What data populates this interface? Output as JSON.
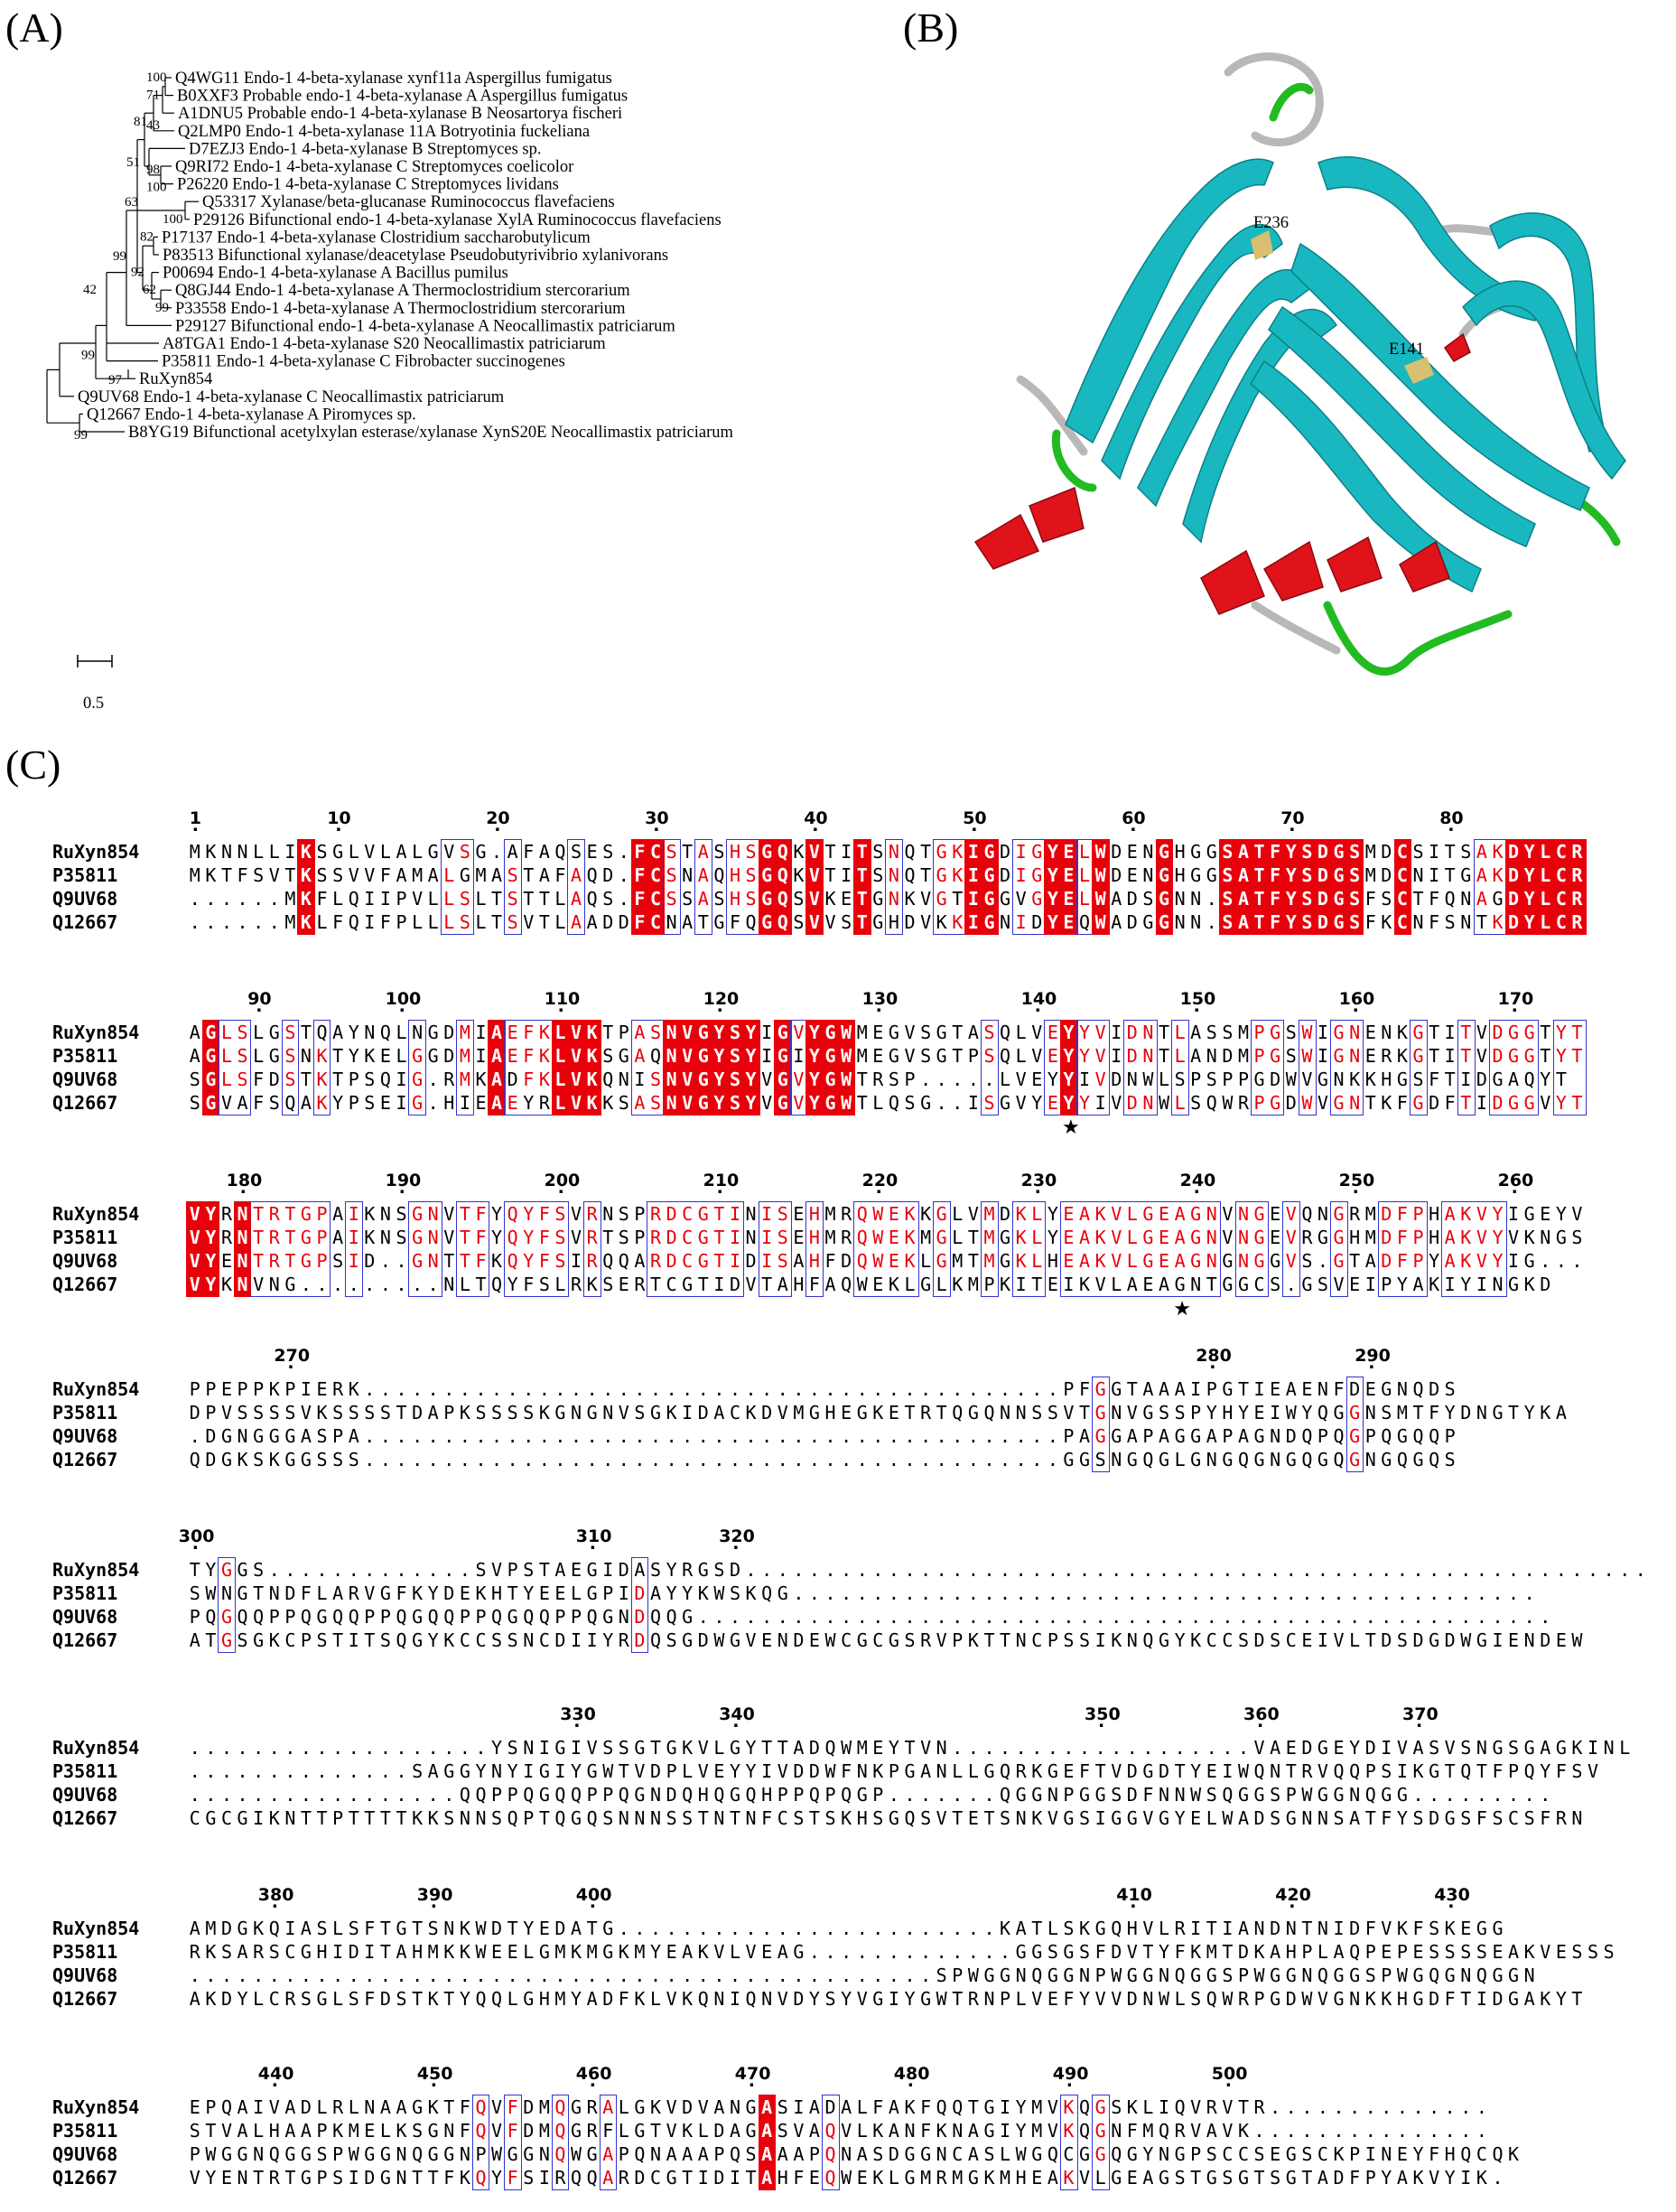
{
  "panels": {
    "a_label": "(A)",
    "b_label": "(B)",
    "c_label": "(C)"
  },
  "tree": {
    "leaves": [
      "Q4WG11 Endo-1 4-beta-xylanase xynf11a Aspergillus fumigatus",
      "B0XXF3 Probable endo-1 4-beta-xylanase A Aspergillus fumigatus",
      "A1DNU5 Probable endo-1 4-beta-xylanase B Neosartorya fischeri",
      "Q2LMP0 Endo-1 4-beta-xylanase 11A Botryotinia fuckeliana",
      "D7EZJ3 Endo-1 4-beta-xylanase B Streptomyces sp.",
      "Q9RI72 Endo-1 4-beta-xylanase C Streptomyces coelicolor",
      "P26220 Endo-1 4-beta-xylanase C Streptomyces lividans",
      "Q53317 Xylanase/beta-glucanase Ruminococcus flavefaciens",
      "P29126 Bifunctional endo-1 4-beta-xylanase XylA Ruminococcus flavefaciens",
      "P17137 Endo-1 4-beta-xylanase Clostridium saccharobutylicum",
      "P83513 Bifunctional xylanase/deacetylase Pseudobutyrivibrio xylanivorans",
      "P00694 Endo-1 4-beta-xylanase A Bacillus pumilus",
      "Q8GJ44 Endo-1 4-beta-xylanase A Thermoclostridium stercorarium",
      "P33558 Endo-1 4-beta-xylanase A Thermoclostridium stercorarium",
      "P29127 Bifunctional endo-1 4-beta-xylanase A Neocallimastix patriciarum",
      "A8TGA1 Endo-1 4-beta-xylanase S20 Neocallimastix patriciarum",
      "P35811 Endo-1 4-beta-xylanase C Fibrobacter succinogenes",
      "RuXyn854",
      "Q9UV68 Endo-1 4-beta-xylanase C Neocallimastix patriciarum",
      "Q12667 Endo-1 4-beta-xylanase A Piromyces sp.",
      "B8YG19 Bifunctional acetylxylan esterase/xylanase XynS20E Neocallimastix patriciarum"
    ],
    "bootstraps": [
      "100",
      "71",
      "81",
      "43",
      "51",
      "98",
      "100",
      "63",
      "100",
      "82",
      "99",
      "92",
      "62",
      "99",
      "42",
      "99",
      "97",
      "99"
    ],
    "scale_label": "0.5"
  },
  "structure": {
    "residue_labels": [
      "E236",
      "E141"
    ],
    "colors": {
      "helix": "#e0131a",
      "sheet": "#19b8c0",
      "turn": "#22bb22",
      "coil": "#b8b8b8",
      "active": "#d8c070"
    }
  },
  "alignment": {
    "names": [
      "RuXyn854",
      "P35811",
      "Q9UV68",
      "Q12667"
    ],
    "colors": {
      "identical_fill": "#e8000b",
      "similar_text": "#e8000b",
      "box": "#3333cc"
    },
    "blocks": [
      {
        "rows": [
          "MKNNLLIKSGLVLALGVSG.AFAQSES.FCSTASHSGQKVTITSNQTGKIGDIGYELWDENGHGGSATFYSDGSMDCSITSAKDYLCR",
          "MKTFSVTKSSVVFAMALGMASTAFAQD.FCSNAQHSGQKVTITSNQTGKIGDIGYELWDENGHGGSATFYSDGSMDCNITGAKDYLCR",
          "......MKFLQIIPVLLSLTSTTLAQS.FCSSASHSGQSVKETGNKVGTIGGVGYELWADSGNN.SATFYSDGSFSCTFQNAGDYLCR",
          "......MKLFQIFPLLLSLTSVTLAADDFCNATGFQGQSVVSTGHDVKKIGNIDYEQWADGGNN.SATFYSDGSFKCNFSNTKDYLCR"
        ],
        "ruler": [
          {
            "num": "1",
            "col": 0
          },
          {
            "num": "10",
            "col": 9
          },
          {
            "num": "20",
            "col": 19
          },
          {
            "num": "30",
            "col": 29
          },
          {
            "num": "40",
            "col": 39
          },
          {
            "num": "50",
            "col": 49
          },
          {
            "num": "60",
            "col": 59
          },
          {
            "num": "70",
            "col": 69
          },
          {
            "num": "80",
            "col": 79
          }
        ],
        "stars": []
      },
      {
        "rows": [
          "AGLSLGSTQAYNQLNGDMIAEFKLVKTPASNVGYSYIGVYGWMEGVSGTASQLVEYYVIDNTLASSMPGSWIGNENKGTITVDGGTYT",
          "AGLSLGSNKTYKELGGDMIAEFKLVKSGAQNVGYSYIGIYGWMEGVSGTPSQLVEYYVIDNTLANDMPGSWIGNERKGTITVDGGTYT",
          "SGLSFDSTKTPSQIG.RMKADFKLVKQNISNVGYSYVGVYGWTRSP.....LVEYYIVDNWLSPSPPGDWVGNKKHGSFTIDGAQYT",
          "SGVAFSQAKYPSEIG.HIEAEYRLVKKSASNVGYSYVGVYGWTLQSG..ISGVYEYYIVDNWLSQWRPGDWVGNTKFGDFTIDGGVYT"
        ],
        "ruler": [
          {
            "num": "90",
            "col": 4
          },
          {
            "num": "100",
            "col": 13
          },
          {
            "num": "110",
            "col": 23
          },
          {
            "num": "120",
            "col": 33
          },
          {
            "num": "130",
            "col": 43
          },
          {
            "num": "140",
            "col": 53
          },
          {
            "num": "150",
            "col": 63
          },
          {
            "num": "160",
            "col": 73
          },
          {
            "num": "170",
            "col": 83
          }
        ],
        "stars": [
          {
            "col": 55
          }
        ]
      },
      {
        "rows": [
          "VYRNTRTGPAIKNSGNVTFYQYFSVRNSPRDCGTINISEHMRQWEKKGLVMDKLYEAKVLGEAGNVNGEVQNGRMDFPHAKVYIGEYV",
          "VYRNTRTGPAIKNSGNVTFYQYFSVRTSPRDCGTINISEHMRQWEKMGLTMGKLYEAKVLGEAGNVNGEVRGGHMDFPHAKVYVKNGS",
          "VYENTRTGPSID..GNTTFKQYFSIRQQARDCGTIDISAHFDQWEKLGMTMGKLHEAKVLGEAGNGNGGVS.GTADFPYAKVYIG...",
          "VYKNVNG.........NLTQYFSLRKSERTCGTIDVTAHFAQWEKLGLKMPKITEIKVLAEAGNTGGCS.GSVEIPYAKIYINGKD"
        ],
        "ruler": [
          {
            "num": "180",
            "col": 3
          },
          {
            "num": "190",
            "col": 13
          },
          {
            "num": "200",
            "col": 23
          },
          {
            "num": "210",
            "col": 33
          },
          {
            "num": "220",
            "col": 43
          },
          {
            "num": "230",
            "col": 53
          },
          {
            "num": "240",
            "col": 63
          },
          {
            "num": "250",
            "col": 73
          },
          {
            "num": "260",
            "col": 83
          }
        ],
        "stars": [
          {
            "col": 62
          }
        ]
      },
      {
        "rows": [
          "PPEPPKPIERK............................................PFGGTAAAIPGTIEAENFDEGNQDS",
          "DPVSSSSVKSSSSTDAPKSSSSKGNGNVSGKIDACKDVMGHEGKETRTQGQNNSSVTGNVGSSPYHYEIWYQGGNSMTFYDNGTYKA",
          ".DGNGGGASPA............................................PAGGAPAGGAPAGNDQPQGPQGQQP",
          "QDGKSKGGSSS............................................GGSNGQGLGNGQGNGQGQGNGQGQS"
        ],
        "ruler": [
          {
            "num": "270",
            "col": 6
          },
          {
            "num": "280",
            "col": 64
          },
          {
            "num": "290",
            "col": 74
          }
        ],
        "stars": []
      },
      {
        "rows": [
          "TYGGS.............SVPSTAEGIDASYRGSD.........................................................",
          "SWNGTNDFLARVGFKYDEKHTYEELGPIDAYYKWSKQG...............................................",
          "PQGQQPPQGQQPPQGQQPPQGQQPPQGNDQQG......................................................",
          "ATGSGKCPSTITSQGYKCCSSNCDIIYRDQSGDWGVENDEWCGCGSRVPKTTNCPSSIKNQGYKCCSDSCEIVLTDSDGDWGIENDEW"
        ],
        "ruler": [
          {
            "num": "300",
            "col": 0
          },
          {
            "num": "310",
            "col": 25
          },
          {
            "num": "320",
            "col": 34
          }
        ],
        "stars": []
      },
      {
        "rows": [
          "...................YSNIGIVSSGTGKVLGYTTADQWMEYTVN...................VAEDGEYDIVASVSNGSGAGKINL",
          "..............SAGGYNYIGIYGWTVDPLVEYYIVDDWFNKPGANLLGQRKGEFTVDGDTYEIWQNTRVQQPSIKGTQTFPQYFSV",
          ".................QQPPQGQQPPQGNDQHQGQHPPQPQGP.......QGGNPGGSDFNNWSQGGSPWGGNQGG.........",
          "CGCGIKNTTPTTTTKKSNNSQPTQGQSNNNSSTNTNFCSTSKHSGQSVTETSNKVGSIGGVGYELWADSGNNSATFYSDGSFSCSFRN"
        ],
        "ruler": [
          {
            "num": "330",
            "col": 24
          },
          {
            "num": "340",
            "col": 34
          },
          {
            "num": "350",
            "col": 57
          },
          {
            "num": "360",
            "col": 67
          },
          {
            "num": "370",
            "col": 77
          }
        ],
        "stars": []
      },
      {
        "rows": [
          "AMDGKQIASLSFTGTSNKWDTYEDATG........................KATLSKGQHVLRITIANDNTNIDFVKFSKEGG",
          "RKSARSCGHIDITAHMKKWEELGMKMGKMYEAKVLVEAG.............GGSGSFDVTYFKMTDKAHPLAQPEPESSSSEAKVESSS",
          "...............................................SPWGGNQGGNPWGGNQGGSPWGGNQGGSPWGQGNQGGN",
          "AKDYLCRSGLSFDSTKTYQQLGHMYADFKLVKQNIQNVDYSYVGIYGWTRNPLVEFYVVDNWLSQWRPGDWVGNKKHGDFTIDGAKYT"
        ],
        "ruler": [
          {
            "num": "380",
            "col": 5
          },
          {
            "num": "390",
            "col": 15
          },
          {
            "num": "400",
            "col": 25
          },
          {
            "num": "410",
            "col": 59
          },
          {
            "num": "420",
            "col": 69
          },
          {
            "num": "430",
            "col": 79
          }
        ],
        "stars": []
      },
      {
        "rows": [
          "EPQAIVADLRLNAAGKTFQVFDMQGRALGKVDVANGASIADALFAKFQQTGIYMVKQGSKLIQVRVTR..............",
          "STVALHAAPKMELKSGNFQVFDMQGRFLGTVKLDAGASVAQVLKANFKNAGIYMVKQGNFMQRVAVK...............",
          "PWGGNQGGSPWGGNQGGNPWGGNQWGAPQNAAAPQSAAAPQNASDGGNCASLWGQCGGQGYNGPSCCSEGSCKPINEYFHQCQK",
          "VYENTRTGPSIDGNTTFKQYFSIRQQARDCGTIDITAHFEQWEKLGMRMGKMHEAKVLGEAGSTGSGTSGTADFPYAKVYIK."
        ],
        "ruler": [
          {
            "num": "440",
            "col": 5
          },
          {
            "num": "450",
            "col": 15
          },
          {
            "num": "460",
            "col": 25
          },
          {
            "num": "470",
            "col": 35
          },
          {
            "num": "480",
            "col": 45
          },
          {
            "num": "490",
            "col": 55
          },
          {
            "num": "500",
            "col": 65
          }
        ],
        "stars": []
      }
    ]
  }
}
